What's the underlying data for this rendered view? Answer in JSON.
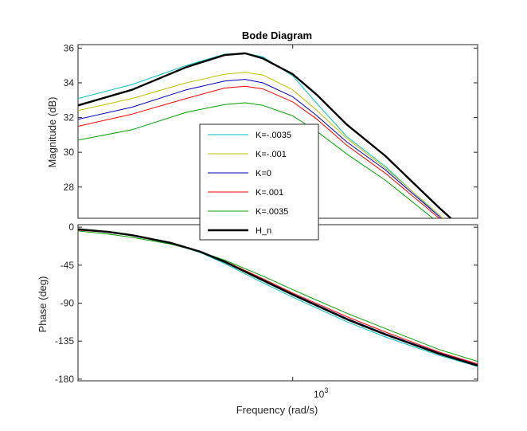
{
  "title": "Bode Diagram",
  "xlabel": "Frequency  (rad/s)",
  "x_tick": {
    "base": "10",
    "exp": "3"
  },
  "chart_data": [
    {
      "type": "line",
      "panel": "magnitude",
      "title": "Bode Diagram",
      "ylabel": "Magnitude (dB)",
      "xscale": "log",
      "xlim": [
        200,
        4000
      ],
      "ylim": [
        26.2,
        36.2
      ],
      "yticks": [
        "36",
        "34",
        "32",
        "30",
        "28"
      ],
      "grid": false,
      "legend_position": "center-overlapping-panels",
      "x": [
        200,
        300,
        450,
        600,
        700,
        800,
        1000,
        1200,
        1500,
        2000,
        3000,
        4000
      ],
      "series": [
        {
          "name": "K=-.0035",
          "color": "#00bfbf",
          "values": [
            33.1,
            33.9,
            35.0,
            35.65,
            35.7,
            35.5,
            34.4,
            32.8,
            30.9,
            29.2,
            26.3,
            24.2
          ]
        },
        {
          "name": "K=-.001",
          "color": "#bfbf00",
          "values": [
            32.4,
            33.1,
            34.0,
            34.5,
            34.6,
            34.45,
            33.6,
            32.4,
            30.8,
            29.1,
            26.4,
            24.3
          ]
        },
        {
          "name": "K=0",
          "color": "#0000bf",
          "values": [
            31.9,
            32.6,
            33.6,
            34.1,
            34.2,
            34.0,
            33.2,
            32.1,
            30.6,
            29.0,
            26.3,
            24.2
          ]
        },
        {
          "name": "K=.001",
          "color": "#ff0000",
          "values": [
            31.5,
            32.2,
            33.1,
            33.7,
            33.8,
            33.65,
            32.9,
            31.9,
            30.4,
            28.8,
            26.2,
            24.1
          ]
        },
        {
          "name": "K=.0035",
          "color": "#00a000",
          "values": [
            30.7,
            31.3,
            32.3,
            32.75,
            32.85,
            32.7,
            32.1,
            31.2,
            29.9,
            28.4,
            25.9,
            23.9
          ]
        },
        {
          "name": "H_n",
          "color": "#000000",
          "values": [
            32.7,
            33.6,
            34.9,
            35.6,
            35.7,
            35.4,
            34.5,
            33.3,
            31.6,
            29.8,
            26.8,
            24.8
          ]
        }
      ]
    },
    {
      "type": "line",
      "panel": "phase",
      "ylabel": "Phase (deg)",
      "xscale": "log",
      "xlim": [
        200,
        4000
      ],
      "ylim": [
        -182,
        3
      ],
      "yticks": [
        "0",
        "-45",
        "-90",
        "-135",
        "-180"
      ],
      "grid": false,
      "x": [
        200,
        250,
        300,
        400,
        500,
        600,
        800,
        1000,
        1500,
        2000,
        3000,
        4000
      ],
      "series": [
        {
          "name": "K=-.0035",
          "color": "#00bfbf",
          "values": [
            -2.5,
            -6,
            -10,
            -19,
            -30,
            -43,
            -66,
            -83,
            -112,
            -130,
            -152,
            -165
          ]
        },
        {
          "name": "K=-.001",
          "color": "#bfbf00",
          "values": [
            -3.0,
            -6,
            -10,
            -19,
            -29,
            -40,
            -62,
            -79,
            -108,
            -126,
            -149,
            -163
          ]
        },
        {
          "name": "K=0",
          "color": "#0000bf",
          "values": [
            -3.0,
            -6,
            -10,
            -19,
            -29,
            -40,
            -62,
            -79,
            -108,
            -126,
            -149,
            -163
          ]
        },
        {
          "name": "K=.001",
          "color": "#ff0000",
          "values": [
            -3.5,
            -6,
            -10,
            -19,
            -29,
            -40,
            -61,
            -78,
            -106,
            -124,
            -148,
            -162
          ]
        },
        {
          "name": "K=.0035",
          "color": "#00a000",
          "values": [
            -4.5,
            -8,
            -12,
            -20,
            -29,
            -39,
            -58,
            -74,
            -102,
            -120,
            -145,
            -159
          ]
        },
        {
          "name": "H_n",
          "color": "#000000",
          "values": [
            -2.5,
            -5.5,
            -9.5,
            -18.5,
            -29,
            -41,
            -63,
            -80,
            -109,
            -127,
            -150,
            -164
          ]
        }
      ]
    }
  ]
}
